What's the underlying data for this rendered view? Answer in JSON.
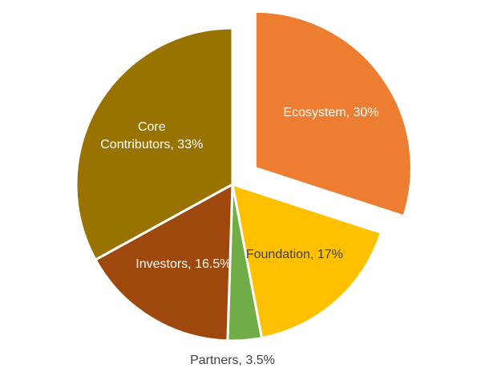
{
  "chart_data": {
    "type": "pie",
    "categories": [
      "Ecosystem",
      "Foundation",
      "Partners",
      "Investors",
      "Core Contributors"
    ],
    "values": [
      30,
      17,
      3.5,
      16.5,
      33
    ],
    "value_labels": [
      "Ecosystem, 30%",
      "Foundation, 17%",
      "Partners, 3.5%",
      "Investors, 16.5%",
      "Core Contributors, 33%"
    ],
    "colors": [
      "#ED7D31",
      "#FFC000",
      "#70AD47",
      "#9E480E",
      "#997300"
    ],
    "exploded": [
      true,
      false,
      false,
      false,
      false
    ]
  }
}
